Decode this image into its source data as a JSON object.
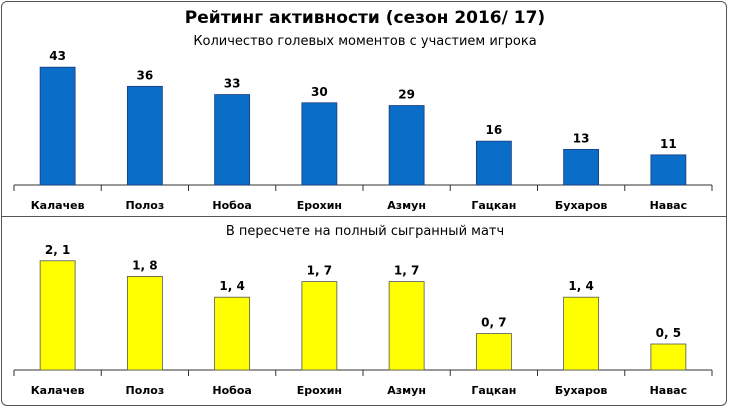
{
  "title": "Рейтинг активности (сезон 2016/ 17)",
  "chart_data": [
    {
      "type": "bar",
      "title": "Количество голевых моментов с участием игрока",
      "categories": [
        "Калачев",
        "Полоз",
        "Нобоа",
        "Ерохин",
        "Азмун",
        "Гацкан",
        "Бухаров",
        "Навас"
      ],
      "values": [
        43,
        36,
        33,
        30,
        29,
        16,
        13,
        11
      ],
      "value_labels": [
        "43",
        "36",
        "33",
        "30",
        "29",
        "16",
        "13",
        "11"
      ],
      "ylim": [
        0,
        50
      ],
      "color": "#0a6ec9",
      "edge_color": "#1a3a7a",
      "grid": false
    },
    {
      "type": "bar",
      "title": "В пересчете на полный сыгранный матч",
      "categories": [
        "Калачев",
        "Полоз",
        "Нобоа",
        "Ерохин",
        "Азмун",
        "Гацкан",
        "Бухаров",
        "Навас"
      ],
      "values": [
        2.1,
        1.8,
        1.4,
        1.7,
        1.7,
        0.7,
        1.4,
        0.5
      ],
      "value_labels": [
        "2, 1",
        "1, 8",
        "1, 4",
        "1, 7",
        "1, 7",
        "0, 7",
        "1, 4",
        "0, 5"
      ],
      "ylim": [
        0,
        2.5
      ],
      "color": "#ffff00",
      "edge_color": "#555555",
      "grid": false
    }
  ]
}
